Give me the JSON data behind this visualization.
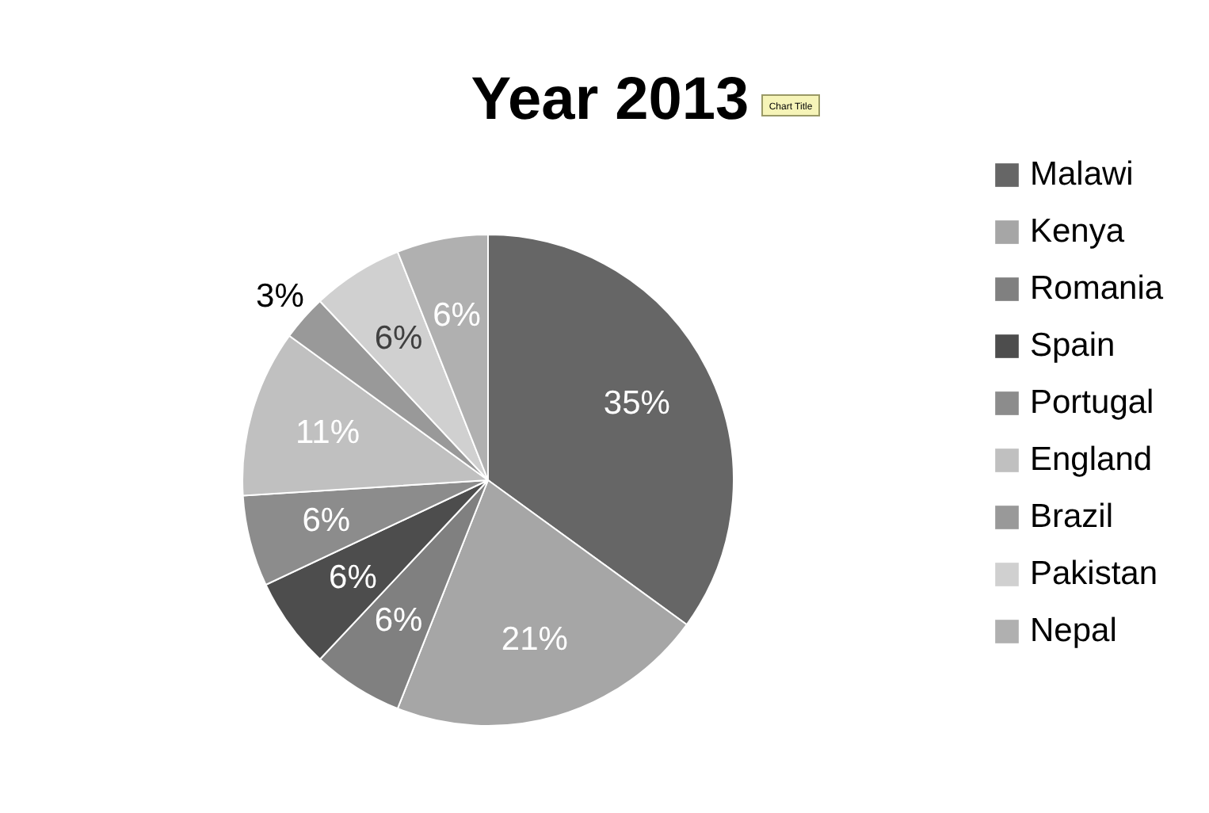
{
  "chart_data": {
    "type": "pie",
    "title": "Year 2013",
    "categories": [
      "Malawi",
      "Kenya",
      "Romania",
      "Spain",
      "Portugal",
      "England",
      "Brazil",
      "Pakistan",
      "Nepal"
    ],
    "values": [
      35,
      21,
      6,
      6,
      6,
      11,
      3,
      6,
      6
    ],
    "value_labels": [
      "35%",
      "21%",
      "6%",
      "6%",
      "6%",
      "11%",
      "3%",
      "6%",
      "6%"
    ],
    "colors": [
      "#666666",
      "#a6a6a6",
      "#808080",
      "#4d4d4d",
      "#8c8c8c",
      "#c0c0c0",
      "#999999",
      "#d0d0d0",
      "#b0b0b0"
    ],
    "legend": "right",
    "annotations": [
      "Chart Title"
    ]
  }
}
